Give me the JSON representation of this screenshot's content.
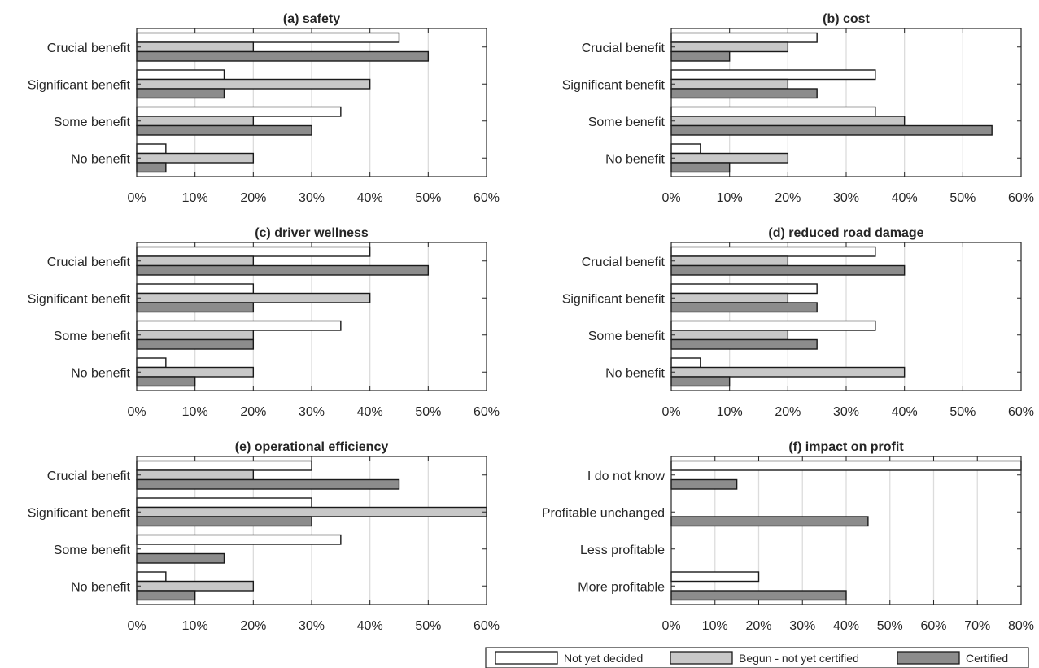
{
  "legend": {
    "items": [
      {
        "label": "Not yet decided",
        "color": "#ffffff"
      },
      {
        "label": "Begun - not yet certified",
        "color": "#c8c8c8"
      },
      {
        "label": "Certified",
        "color": "#8c8c8c"
      }
    ]
  },
  "chart_data": [
    {
      "type": "bar",
      "orientation": "horizontal",
      "title": "(a) safety",
      "categories": [
        "Crucial benefit",
        "Significant benefit",
        "Some benefit",
        "No benefit"
      ],
      "xlim": [
        0,
        60
      ],
      "xticks": [
        0,
        10,
        20,
        30,
        40,
        50,
        60
      ],
      "tick_suffix": "%",
      "grid": "vertical",
      "series": [
        {
          "name": "Not yet decided",
          "values": [
            45,
            15,
            35,
            5
          ]
        },
        {
          "name": "Begun - not yet certified",
          "values": [
            20,
            40,
            20,
            20
          ]
        },
        {
          "name": "Certified",
          "values": [
            50,
            15,
            30,
            5
          ]
        }
      ]
    },
    {
      "type": "bar",
      "orientation": "horizontal",
      "title": "(b) cost",
      "categories": [
        "Crucial benefit",
        "Significant benefit",
        "Some benefit",
        "No benefit"
      ],
      "xlim": [
        0,
        60
      ],
      "xticks": [
        0,
        10,
        20,
        30,
        40,
        50,
        60
      ],
      "tick_suffix": "%",
      "grid": "vertical",
      "series": [
        {
          "name": "Not yet decided",
          "values": [
            25,
            35,
            35,
            5
          ]
        },
        {
          "name": "Begun - not yet certified",
          "values": [
            20,
            20,
            40,
            20
          ]
        },
        {
          "name": "Certified",
          "values": [
            10,
            25,
            55,
            10
          ]
        }
      ]
    },
    {
      "type": "bar",
      "orientation": "horizontal",
      "title": "(c) driver wellness",
      "categories": [
        "Crucial benefit",
        "Significant benefit",
        "Some benefit",
        "No benefit"
      ],
      "xlim": [
        0,
        60
      ],
      "xticks": [
        0,
        10,
        20,
        30,
        40,
        50,
        60
      ],
      "tick_suffix": "%",
      "grid": "vertical",
      "series": [
        {
          "name": "Not yet decided",
          "values": [
            40,
            20,
            35,
            5
          ]
        },
        {
          "name": "Begun - not yet certified",
          "values": [
            20,
            40,
            20,
            20
          ]
        },
        {
          "name": "Certified",
          "values": [
            50,
            20,
            20,
            10
          ]
        }
      ]
    },
    {
      "type": "bar",
      "orientation": "horizontal",
      "title": "(d) reduced road damage",
      "categories": [
        "Crucial benefit",
        "Significant benefit",
        "Some benefit",
        "No benefit"
      ],
      "xlim": [
        0,
        60
      ],
      "xticks": [
        0,
        10,
        20,
        30,
        40,
        50,
        60
      ],
      "tick_suffix": "%",
      "grid": "vertical",
      "series": [
        {
          "name": "Not yet decided",
          "values": [
            35,
            25,
            35,
            5
          ]
        },
        {
          "name": "Begun - not yet certified",
          "values": [
            20,
            20,
            20,
            40
          ]
        },
        {
          "name": "Certified",
          "values": [
            40,
            25,
            25,
            10
          ]
        }
      ]
    },
    {
      "type": "bar",
      "orientation": "horizontal",
      "title": "(e) operational efficiency",
      "categories": [
        "Crucial benefit",
        "Significant benefit",
        "Some benefit",
        "No benefit"
      ],
      "xlim": [
        0,
        60
      ],
      "xticks": [
        0,
        10,
        20,
        30,
        40,
        50,
        60
      ],
      "tick_suffix": "%",
      "grid": "vertical",
      "series": [
        {
          "name": "Not yet decided",
          "values": [
            30,
            30,
            35,
            5
          ]
        },
        {
          "name": "Begun - not yet certified",
          "values": [
            20,
            60,
            0,
            20
          ]
        },
        {
          "name": "Certified",
          "values": [
            45,
            30,
            15,
            10
          ]
        }
      ]
    },
    {
      "type": "bar",
      "orientation": "horizontal",
      "title": "(f) impact on profit",
      "categories": [
        "I do not know",
        "Profitable unchanged",
        "Less profitable",
        "More profitable"
      ],
      "xlim": [
        0,
        80
      ],
      "xticks": [
        0,
        10,
        20,
        30,
        40,
        50,
        60,
        70,
        80
      ],
      "tick_suffix": "%",
      "grid": "vertical",
      "series": [
        {
          "name": "Not yet decided",
          "values": [
            80,
            0,
            0,
            20
          ]
        },
        {
          "name": "Begun - not yet certified",
          "values": [
            0,
            0,
            0,
            0
          ]
        },
        {
          "name": "Certified",
          "values": [
            15,
            45,
            0,
            40
          ]
        }
      ]
    }
  ]
}
